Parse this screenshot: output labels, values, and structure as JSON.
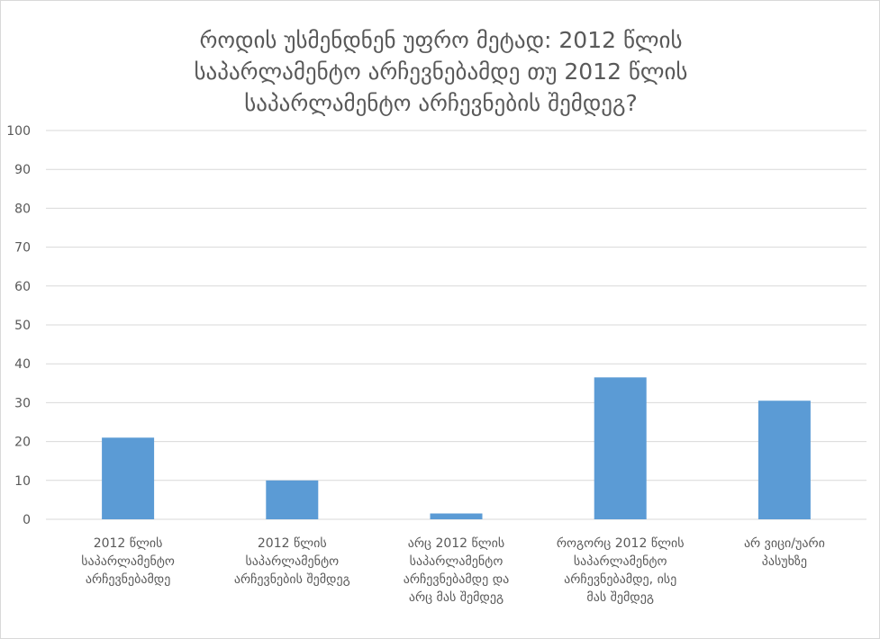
{
  "chart_data": {
    "type": "bar",
    "title_lines": [
      "როდის უსმენდნენ უფრო მეტად: 2012 წლის",
      "საპარლამენტო არჩევნებამდე თუ 2012 წლის",
      "საპარლამენტო არჩევნების შემდეგ?"
    ],
    "categories": [
      [
        "2012 წლის",
        "საპარლამენტო",
        "არჩევნებამდე"
      ],
      [
        "2012 წლის",
        "საპარლამენტო",
        "არჩევნების შემდეგ"
      ],
      [
        "არც 2012 წლის",
        "საპარლამენტო",
        "არჩევნებამდე და",
        "არც მას შემდეგ"
      ],
      [
        "როგორც 2012 წლის",
        "საპარლამენტო",
        "არჩევნებამდე, ისე",
        "მას შემდეგ"
      ],
      [
        "არ ვიცი/უარი",
        "პასუხზე"
      ]
    ],
    "values": [
      21,
      10,
      1.5,
      36.5,
      30.5
    ],
    "ylim": [
      0,
      100
    ],
    "yticks": [
      0,
      10,
      20,
      30,
      40,
      50,
      60,
      70,
      80,
      90,
      100
    ],
    "grid": true,
    "bar_color": "#5b9bd5",
    "grid_color": "#d9d9d9",
    "text_color": "#595959"
  }
}
